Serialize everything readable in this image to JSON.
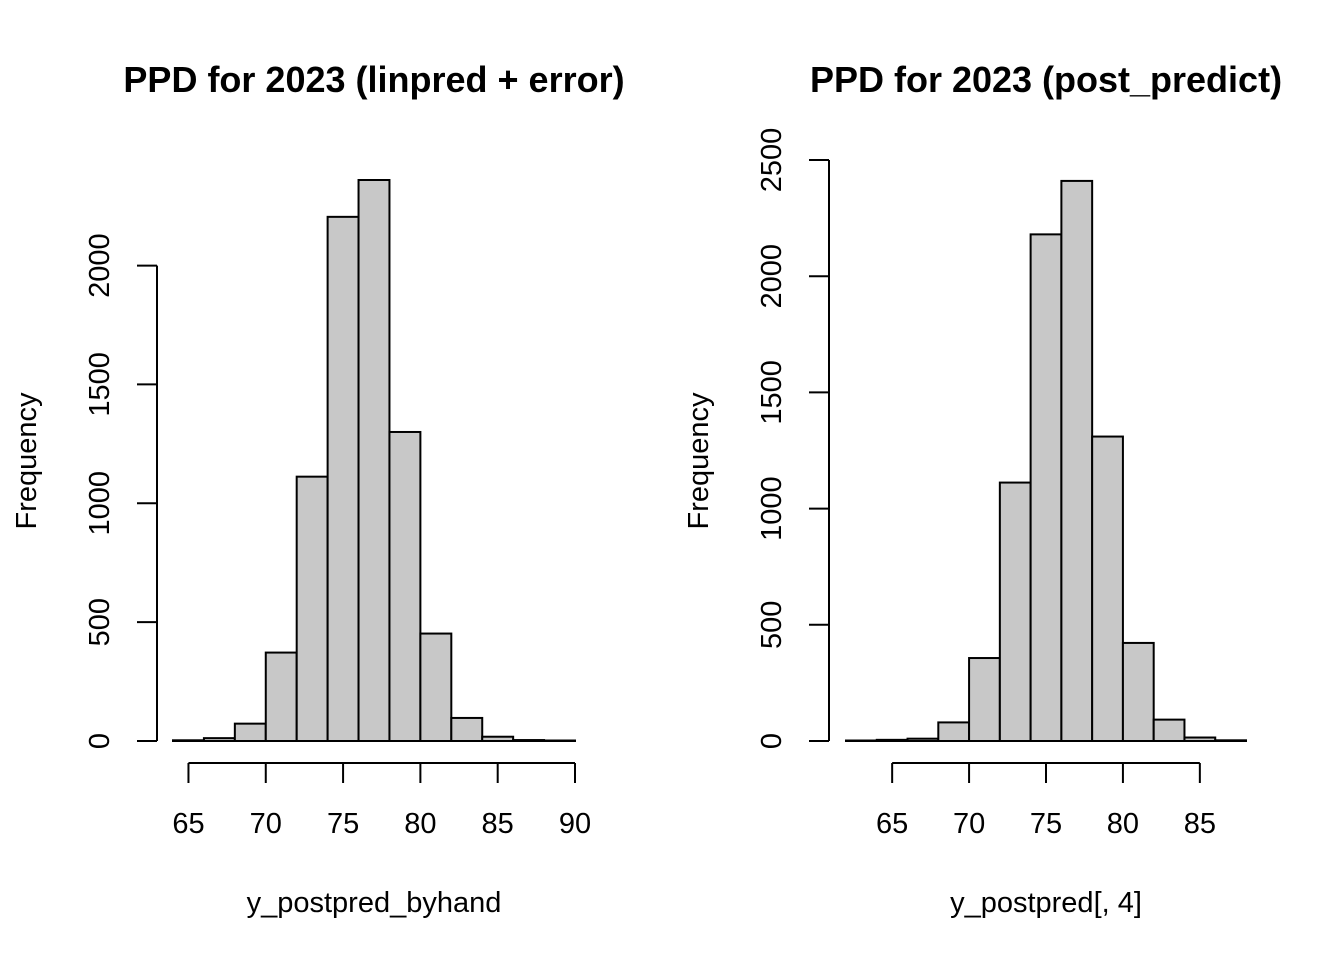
{
  "chart_data": [
    {
      "type": "bar",
      "title": "PPD for 2023 (linpred + error)",
      "xlabel": "y_postpred_byhand",
      "ylabel": "Frequency",
      "bin_edges": [
        64,
        66,
        68,
        70,
        72,
        74,
        76,
        78,
        80,
        82,
        84,
        86,
        88,
        90
      ],
      "values": [
        3,
        12,
        73,
        372,
        1112,
        2205,
        2360,
        1300,
        452,
        97,
        18,
        4,
        1
      ],
      "xlim": [
        64,
        90
      ],
      "ylim": [
        0,
        2360
      ],
      "xticks": [
        65,
        70,
        75,
        80,
        85,
        90
      ],
      "yticks": [
        0,
        500,
        1000,
        1500,
        2000
      ],
      "bar_color": "#c8c8c8"
    },
    {
      "type": "bar",
      "title": "PPD for 2023 (post_predict)",
      "xlabel": "y_postpred[, 4]",
      "ylabel": "Frequency",
      "bin_edges": [
        62,
        64,
        66,
        68,
        70,
        72,
        74,
        76,
        78,
        80,
        82,
        84,
        86,
        88
      ],
      "values": [
        1,
        5,
        10,
        80,
        357,
        1112,
        2180,
        2410,
        1310,
        422,
        92,
        15,
        3
      ],
      "xlim": [
        62,
        88
      ],
      "ylim": [
        0,
        2500
      ],
      "xticks": [
        65,
        70,
        75,
        80,
        85
      ],
      "yticks": [
        0,
        500,
        1000,
        1500,
        2000,
        2500
      ],
      "bar_color": "#c8c8c8"
    }
  ]
}
